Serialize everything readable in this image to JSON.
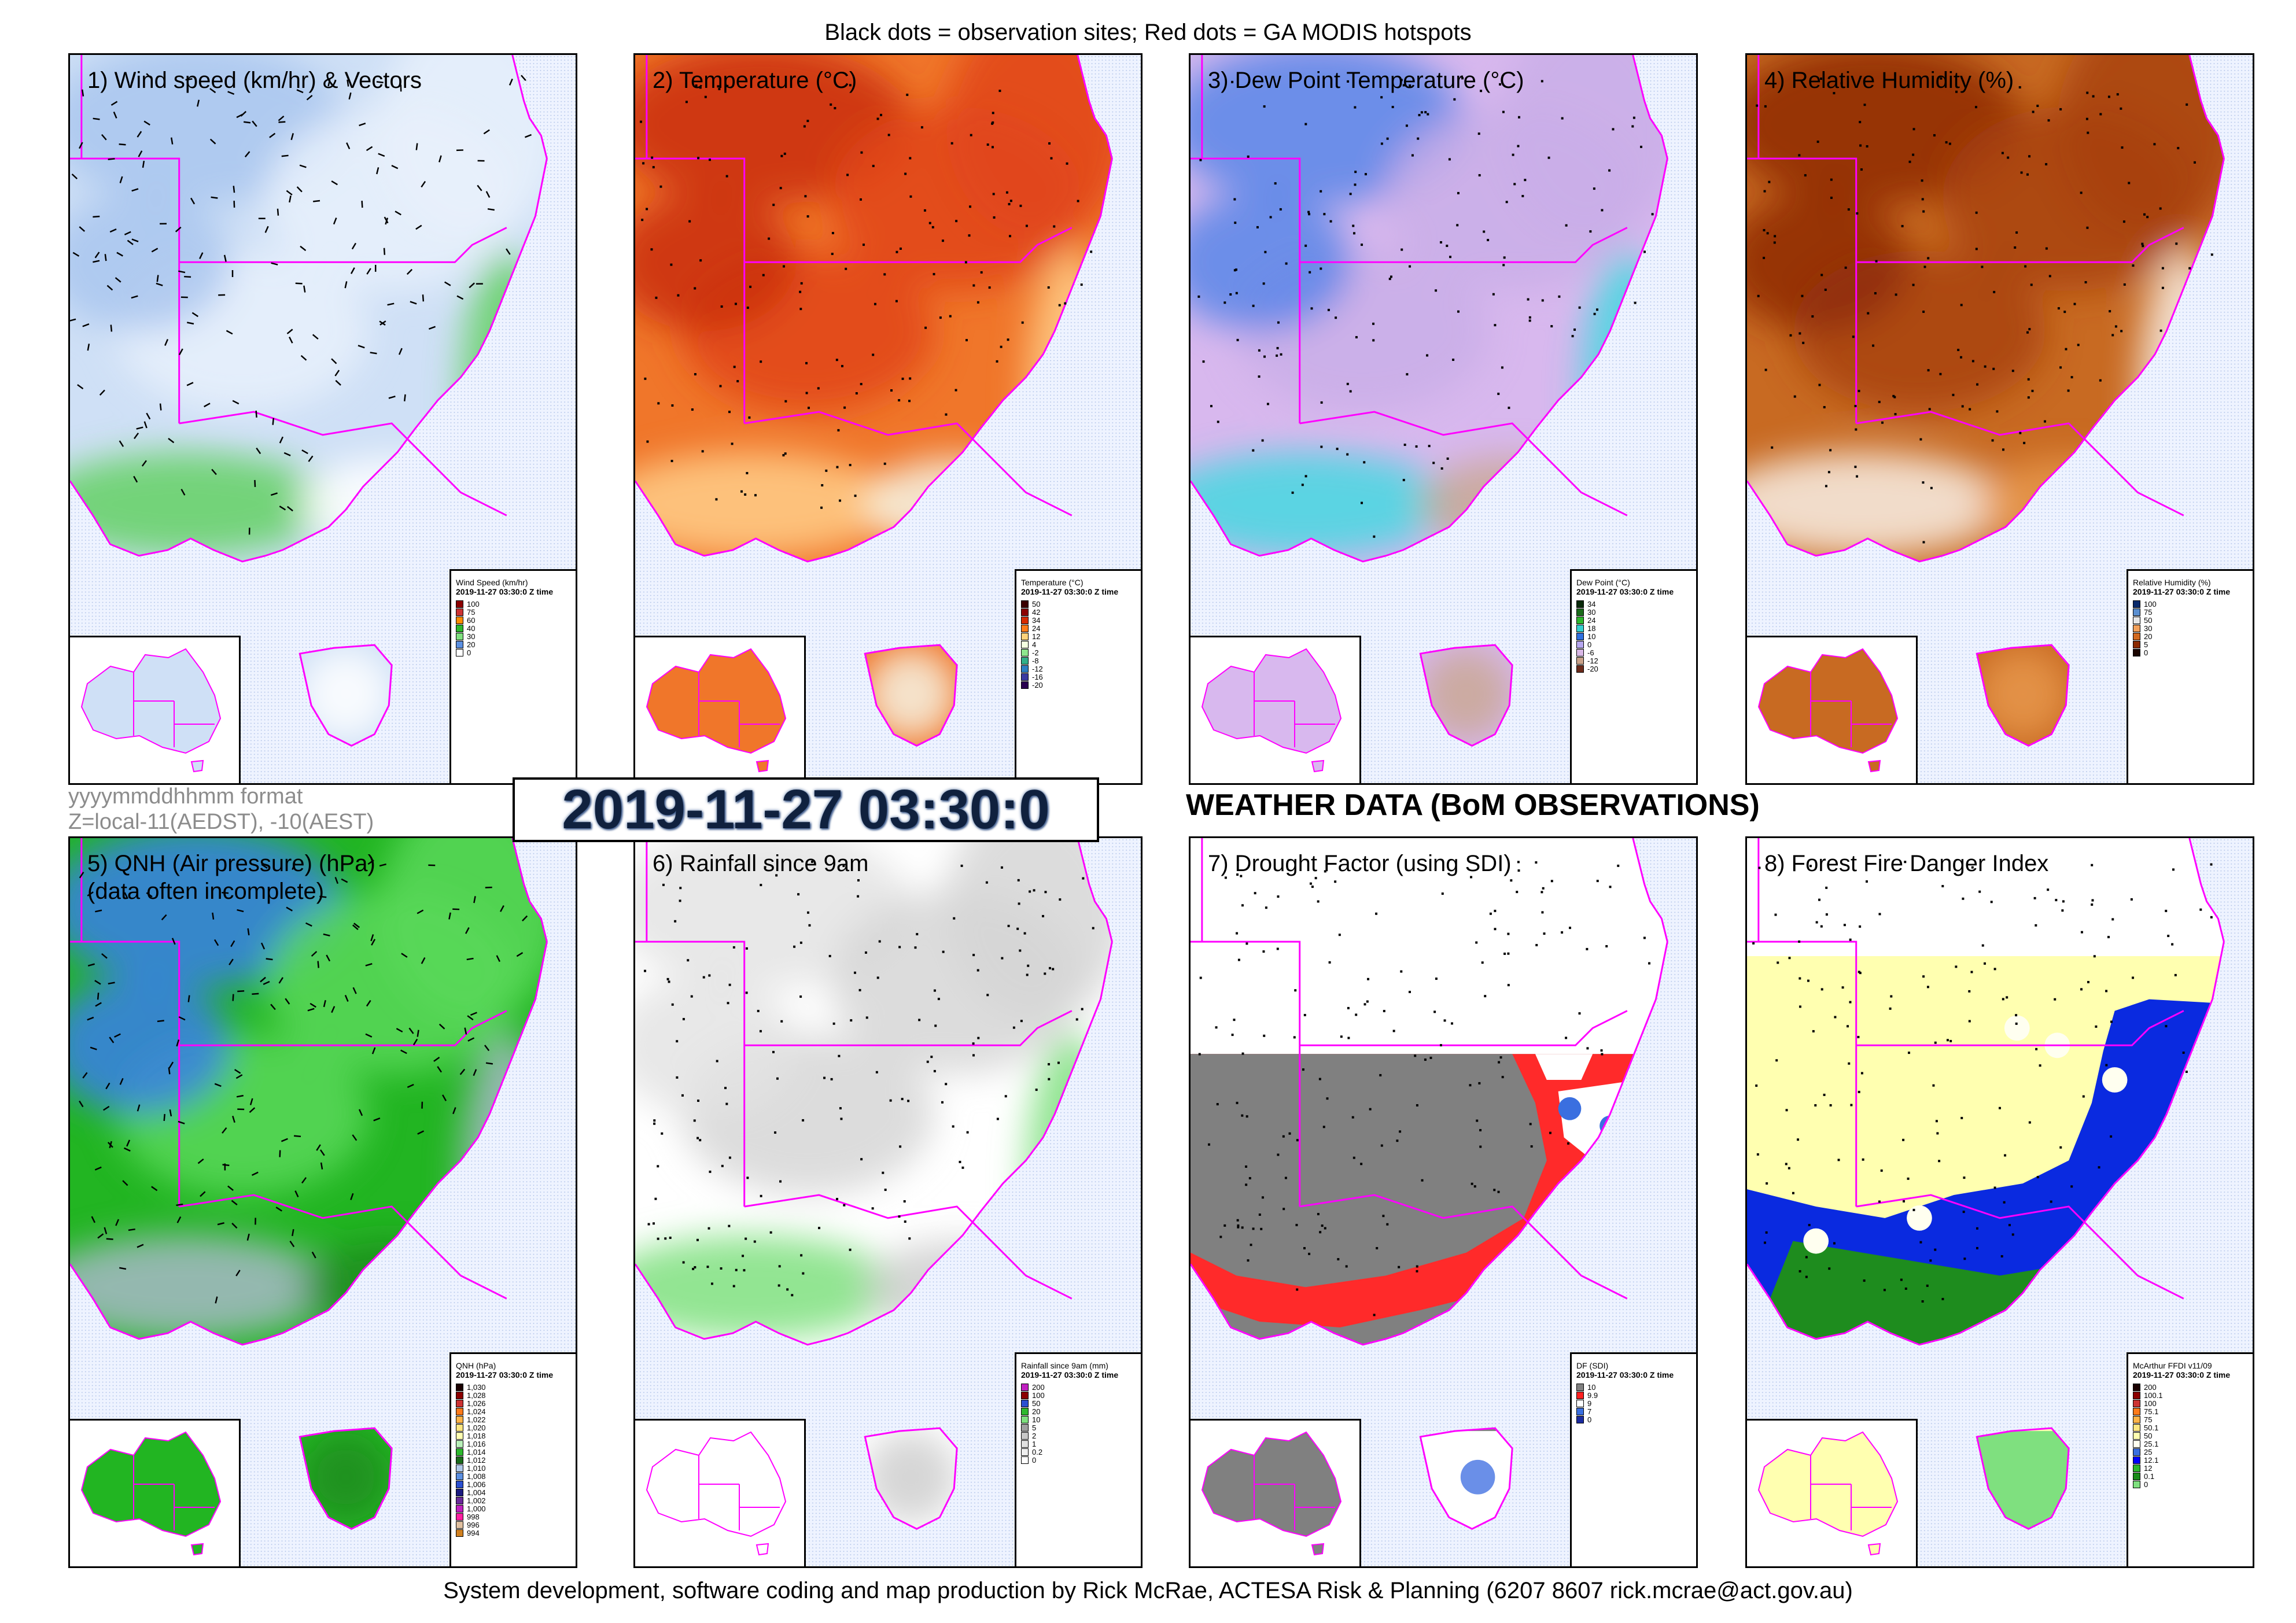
{
  "caption": "Black dots = observation sites; Red dots = GA MODIS hotspots",
  "footer": "System development, software coding and map production by Rick McRae, ACTESA Risk & Planning (6207 8607 rick.mcrae@act.gov.au)",
  "title": "WEATHER DATA (BoM OBSERVATIONS)",
  "format_note": {
    "line1": "yyyymmddhhmm format",
    "line2": "Z=local-11(AEDST), -10(AEST)"
  },
  "timestamp": "2019-11-27 03:30:0",
  "legend_time": "2019-11-27 03:30:0 Z time",
  "panels": [
    {
      "id": 1,
      "title": "1) Wind speed (km/hr) & Vectors",
      "subtitle": "",
      "legend_title": "Wind Speed (km/hr)",
      "legend": [
        {
          "label": "100",
          "color": "#8b0000"
        },
        {
          "label": "75",
          "color": "#cc3333"
        },
        {
          "label": "60",
          "color": "#ff8c00"
        },
        {
          "label": "40",
          "color": "#2db82d"
        },
        {
          "label": "30",
          "color": "#7fe07f"
        },
        {
          "label": "20",
          "color": "#5b8fe0"
        },
        {
          "label": "0",
          "color": "#ffffff"
        }
      ],
      "colors": {
        "base": "#cfe0f6",
        "a": "#e8f0fb",
        "b": "#a9c6ee",
        "c": "#63d063",
        "d": "#ffffff"
      }
    },
    {
      "id": 2,
      "title": "2) Temperature (°C)",
      "subtitle": "",
      "legend_title": "Temperature (°C)",
      "legend": [
        {
          "label": "50",
          "color": "#3a0000"
        },
        {
          "label": "42",
          "color": "#8b0000"
        },
        {
          "label": "34",
          "color": "#d62a00"
        },
        {
          "label": "24",
          "color": "#ff7a1a"
        },
        {
          "label": "12",
          "color": "#ffd27a"
        },
        {
          "label": "4",
          "color": "#f3ffe0"
        },
        {
          "label": "-2",
          "color": "#8ee68e"
        },
        {
          "label": "-8",
          "color": "#31b08a"
        },
        {
          "label": "-12",
          "color": "#2d7fc2"
        },
        {
          "label": "-16",
          "color": "#3a3aa0"
        },
        {
          "label": "-20",
          "color": "#2a0050"
        }
      ],
      "colors": {
        "base": "#f0762a",
        "a": "#e0461a",
        "b": "#c93010",
        "c": "#ffcf8a",
        "d": "#f6f6e8"
      }
    },
    {
      "id": 3,
      "title": "3) Dew Point Temperature (°C)",
      "subtitle": "",
      "legend_title": "Dew Point (°C)",
      "legend": [
        {
          "label": "34",
          "color": "#0a2a0a"
        },
        {
          "label": "30",
          "color": "#1a6b1a"
        },
        {
          "label": "24",
          "color": "#2db82d"
        },
        {
          "label": "18",
          "color": "#35d0d0"
        },
        {
          "label": "10",
          "color": "#2f6fe0"
        },
        {
          "label": "0",
          "color": "#b6a6ef"
        },
        {
          "label": "-6",
          "color": "#d9b8e6"
        },
        {
          "label": "-12",
          "color": "#caa28a"
        },
        {
          "label": "-20",
          "color": "#6b2a1a"
        }
      ],
      "colors": {
        "base": "#d8b8ee",
        "a": "#c9aee8",
        "b": "#5a86e8",
        "c": "#45d8e0",
        "d": "#c9a894"
      }
    },
    {
      "id": 4,
      "title": "4) Relative Humidity (%)",
      "subtitle": "",
      "legend_title": "Relative Humidity (%)",
      "legend": [
        {
          "label": "100",
          "color": "#0a2a6a"
        },
        {
          "label": "75",
          "color": "#5a8fd0"
        },
        {
          "label": "50",
          "color": "#e6e6e6"
        },
        {
          "label": "30",
          "color": "#f2a05a"
        },
        {
          "label": "20",
          "color": "#d2691e"
        },
        {
          "label": "5",
          "color": "#8b2a00"
        },
        {
          "label": "0",
          "color": "#1a0500"
        }
      ],
      "colors": {
        "base": "#c86a22",
        "a": "#a84210",
        "b": "#8e2c06",
        "c": "#f8f0e8",
        "d": "#e8984e"
      }
    },
    {
      "id": 5,
      "title": "5) QNH (Air pressure) (hPa)",
      "subtitle": "(data often incomplete)",
      "legend_title": "QNH (hPa)",
      "legend": [
        {
          "label": "1,030",
          "color": "#1a0000"
        },
        {
          "label": "1,028",
          "color": "#8b0000"
        },
        {
          "label": "1,026",
          "color": "#cc3333"
        },
        {
          "label": "1,024",
          "color": "#ff7a1a"
        },
        {
          "label": "1,022",
          "color": "#ffb347"
        },
        {
          "label": "1,020",
          "color": "#ffe680"
        },
        {
          "label": "1,018",
          "color": "#ffffb0"
        },
        {
          "label": "1,016",
          "color": "#b8f0b8"
        },
        {
          "label": "1,014",
          "color": "#2db82d"
        },
        {
          "label": "1,012",
          "color": "#1a6b1a"
        },
        {
          "label": "1,010",
          "color": "#b0c8e8"
        },
        {
          "label": "1,008",
          "color": "#5b8fe0"
        },
        {
          "label": "1,006",
          "color": "#2a4fd0"
        },
        {
          "label": "1,004",
          "color": "#1a1a80"
        },
        {
          "label": "1,002",
          "color": "#6a2a9a"
        },
        {
          "label": "1,000",
          "color": "#c020c0"
        },
        {
          "label": "998",
          "color": "#ff20a0"
        },
        {
          "label": "996",
          "color": "#e0c0a0"
        },
        {
          "label": "994",
          "color": "#d08020"
        }
      ],
      "colors": {
        "base": "#22b522",
        "a": "#5ad85a",
        "b": "#3a7fe8",
        "c": "#a8b8c8",
        "d": "#1e8c1e"
      }
    },
    {
      "id": 6,
      "title": "6) Rainfall since 9am",
      "subtitle": "",
      "legend_title": "Rainfall since 9am (mm)",
      "legend": [
        {
          "label": "200",
          "color": "#c020c0"
        },
        {
          "label": "100",
          "color": "#8b0000"
        },
        {
          "label": "50",
          "color": "#2a4fd0"
        },
        {
          "label": "20",
          "color": "#2db82d"
        },
        {
          "label": "10",
          "color": "#7fe07f"
        },
        {
          "label": "5",
          "color": "#a0a0a0"
        },
        {
          "label": "2",
          "color": "#c8c8c8"
        },
        {
          "label": "1",
          "color": "#e0e0e0"
        },
        {
          "label": "0.2",
          "color": "#f0f0f0"
        },
        {
          "label": "0",
          "color": "#ffffff"
        }
      ],
      "colors": {
        "base": "#ffffff",
        "a": "#d6d6d6",
        "b": "#e4e4e4",
        "c": "#7fe07f",
        "d": "#cfcfcf"
      }
    },
    {
      "id": 7,
      "title": "7) Drought Factor (using SDI)",
      "subtitle": "",
      "legend_title": "DF (SDI)",
      "legend": [
        {
          "label": "10",
          "color": "#808080"
        },
        {
          "label": "9.9",
          "color": "#ff2020"
        },
        {
          "label": "9",
          "color": "#ffffff"
        },
        {
          "label": "7",
          "color": "#3a6fe0"
        },
        {
          "label": "0",
          "color": "#1a2aa0"
        }
      ],
      "colors": {
        "base": "#808080",
        "a": "#ff1e1e",
        "b": "#ffffff",
        "c": "#3a6fe0",
        "d": "#ffd0d0"
      }
    },
    {
      "id": 8,
      "title": "8) Forest Fire Danger Index",
      "subtitle": "",
      "legend_title": "McArthur FFDI v11/09",
      "legend": [
        {
          "label": "200",
          "color": "#1a0000"
        },
        {
          "label": "100.1",
          "color": "#8b0000"
        },
        {
          "label": "100",
          "color": "#cc3333"
        },
        {
          "label": "75.1",
          "color": "#ff7a1a"
        },
        {
          "label": "75",
          "color": "#ffb347"
        },
        {
          "label": "50.1",
          "color": "#ffe680"
        },
        {
          "label": "50",
          "color": "#ffffb0"
        },
        {
          "label": "25.1",
          "color": "#fffff0"
        },
        {
          "label": "25",
          "color": "#3a6fe0"
        },
        {
          "label": "12.1",
          "color": "#0000ff"
        },
        {
          "label": "12",
          "color": "#2db82d"
        },
        {
          "label": "0.1",
          "color": "#1a8c1a"
        },
        {
          "label": "0",
          "color": "#7fe07f"
        }
      ],
      "colors": {
        "base": "#ffffb0",
        "a": "#0a2ae0",
        "b": "#1e8c1e",
        "c": "#fffff0",
        "d": "#ffffff"
      }
    }
  ]
}
